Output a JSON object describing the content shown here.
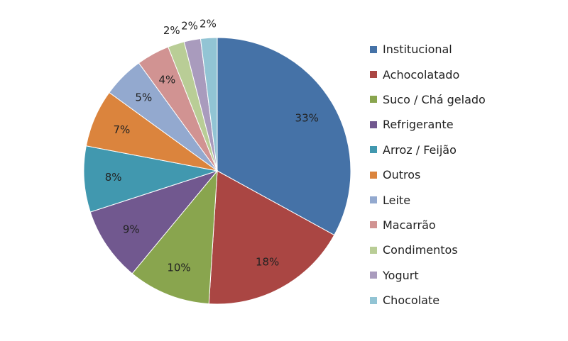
{
  "chart_data": {
    "type": "pie",
    "title": "",
    "legend_position": "right",
    "label_format": "percent",
    "slices": [
      {
        "name": "Institucional",
        "value": 33,
        "label": "33%",
        "color": "#4572A7"
      },
      {
        "name": "Achocolatado",
        "value": 18,
        "label": "18%",
        "color": "#AA4643"
      },
      {
        "name": "Suco / Chá gelado",
        "value": 10,
        "label": "10%",
        "color": "#89A54E"
      },
      {
        "name": "Refrigerante",
        "value": 9,
        "label": "9%",
        "color": "#71588F"
      },
      {
        "name": "Arroz / Feijão",
        "value": 8,
        "label": "8%",
        "color": "#4198AF"
      },
      {
        "name": "Outros",
        "value": 7,
        "label": "7%",
        "color": "#DB843D"
      },
      {
        "name": "Leite",
        "value": 5,
        "label": "5%",
        "color": "#93A9CF"
      },
      {
        "name": "Macarrão",
        "value": 4,
        "label": "4%",
        "color": "#D19392"
      },
      {
        "name": "Condimentos",
        "value": 2,
        "label": "2%",
        "color": "#B9CD96"
      },
      {
        "name": "Yogurt",
        "value": 2,
        "label": "2%",
        "color": "#A99BBD"
      },
      {
        "name": "Chocolate",
        "value": 2,
        "label": "2%",
        "color": "#92C4D4"
      }
    ]
  }
}
